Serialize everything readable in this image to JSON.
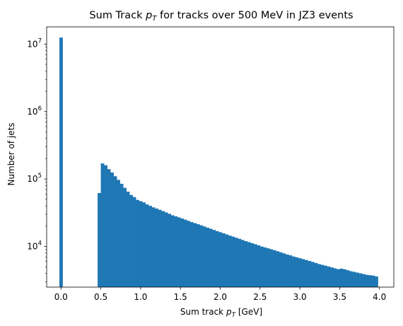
{
  "chart_data": {
    "type": "bar",
    "title_pre": "Sum Track ",
    "title_var": "p",
    "title_sub": "T",
    "title_post": " for tracks over 500 MeV in JZ3 events",
    "xlabel_pre": "Sum track ",
    "xlabel_var": "p",
    "xlabel_sub": "T",
    "xlabel_post": " [GeV]",
    "ylabel": "Number of jets",
    "yscale": "log",
    "xlim": [
      -0.18,
      4.18
    ],
    "ylim": [
      2500,
      18000000
    ],
    "bar_color": "#1f77b4",
    "bin_width": 0.04,
    "x_ticks": [
      {
        "value": 0.0,
        "label": "0.0"
      },
      {
        "value": 0.5,
        "label": "0.5"
      },
      {
        "value": 1.0,
        "label": "1.0"
      },
      {
        "value": 1.5,
        "label": "1.5"
      },
      {
        "value": 2.0,
        "label": "2.0"
      },
      {
        "value": 2.5,
        "label": "2.5"
      },
      {
        "value": 3.0,
        "label": "3.0"
      },
      {
        "value": 3.5,
        "label": "3.5"
      },
      {
        "value": 4.0,
        "label": "4.0"
      }
    ],
    "y_ticks": [
      {
        "value": 10000,
        "base": "10",
        "exp": "4"
      },
      {
        "value": 100000,
        "base": "10",
        "exp": "5"
      },
      {
        "value": 1000000,
        "base": "10",
        "exp": "6"
      },
      {
        "value": 10000000,
        "base": "10",
        "exp": "7"
      }
    ],
    "x": [
      0.0,
      0.48,
      0.52,
      0.56,
      0.6,
      0.64,
      0.68,
      0.72,
      0.76,
      0.8,
      0.84,
      0.88,
      0.92,
      0.96,
      1.0,
      1.04,
      1.08,
      1.12,
      1.16,
      1.2,
      1.24,
      1.28,
      1.32,
      1.36,
      1.4,
      1.44,
      1.48,
      1.52,
      1.56,
      1.6,
      1.64,
      1.68,
      1.72,
      1.76,
      1.8,
      1.84,
      1.88,
      1.92,
      1.96,
      2.0,
      2.04,
      2.08,
      2.12,
      2.16,
      2.2,
      2.24,
      2.28,
      2.32,
      2.36,
      2.4,
      2.44,
      2.48,
      2.52,
      2.56,
      2.6,
      2.64,
      2.68,
      2.72,
      2.76,
      2.8,
      2.84,
      2.88,
      2.92,
      2.96,
      3.0,
      3.04,
      3.08,
      3.12,
      3.16,
      3.2,
      3.24,
      3.28,
      3.32,
      3.36,
      3.4,
      3.44,
      3.48,
      3.52,
      3.56,
      3.6,
      3.64,
      3.68,
      3.72,
      3.76,
      3.8,
      3.84,
      3.88,
      3.92,
      3.96
    ],
    "values": [
      12500000,
      62000,
      170000,
      160000,
      140000,
      125000,
      110000,
      97000,
      85000,
      74000,
      65000,
      58000,
      54000,
      49000,
      47000,
      45000,
      42000,
      40000,
      38000,
      36500,
      35000,
      33500,
      32000,
      30500,
      29000,
      28000,
      27000,
      26000,
      25000,
      24000,
      23000,
      22200,
      21400,
      20600,
      19800,
      19000,
      18300,
      17600,
      16900,
      16300,
      15700,
      15100,
      14500,
      14000,
      13500,
      13000,
      12500,
      12000,
      11600,
      11200,
      10800,
      10400,
      10000,
      9700,
      9400,
      9100,
      8800,
      8500,
      8200,
      7900,
      7600,
      7400,
      7100,
      6900,
      6700,
      6500,
      6300,
      6100,
      5900,
      5700,
      5500,
      5350,
      5200,
      5050,
      4900,
      4750,
      4600,
      4700,
      4600,
      4450,
      4300,
      4200,
      4100,
      4000,
      3900,
      3800,
      3750,
      3700,
      3600
    ]
  }
}
